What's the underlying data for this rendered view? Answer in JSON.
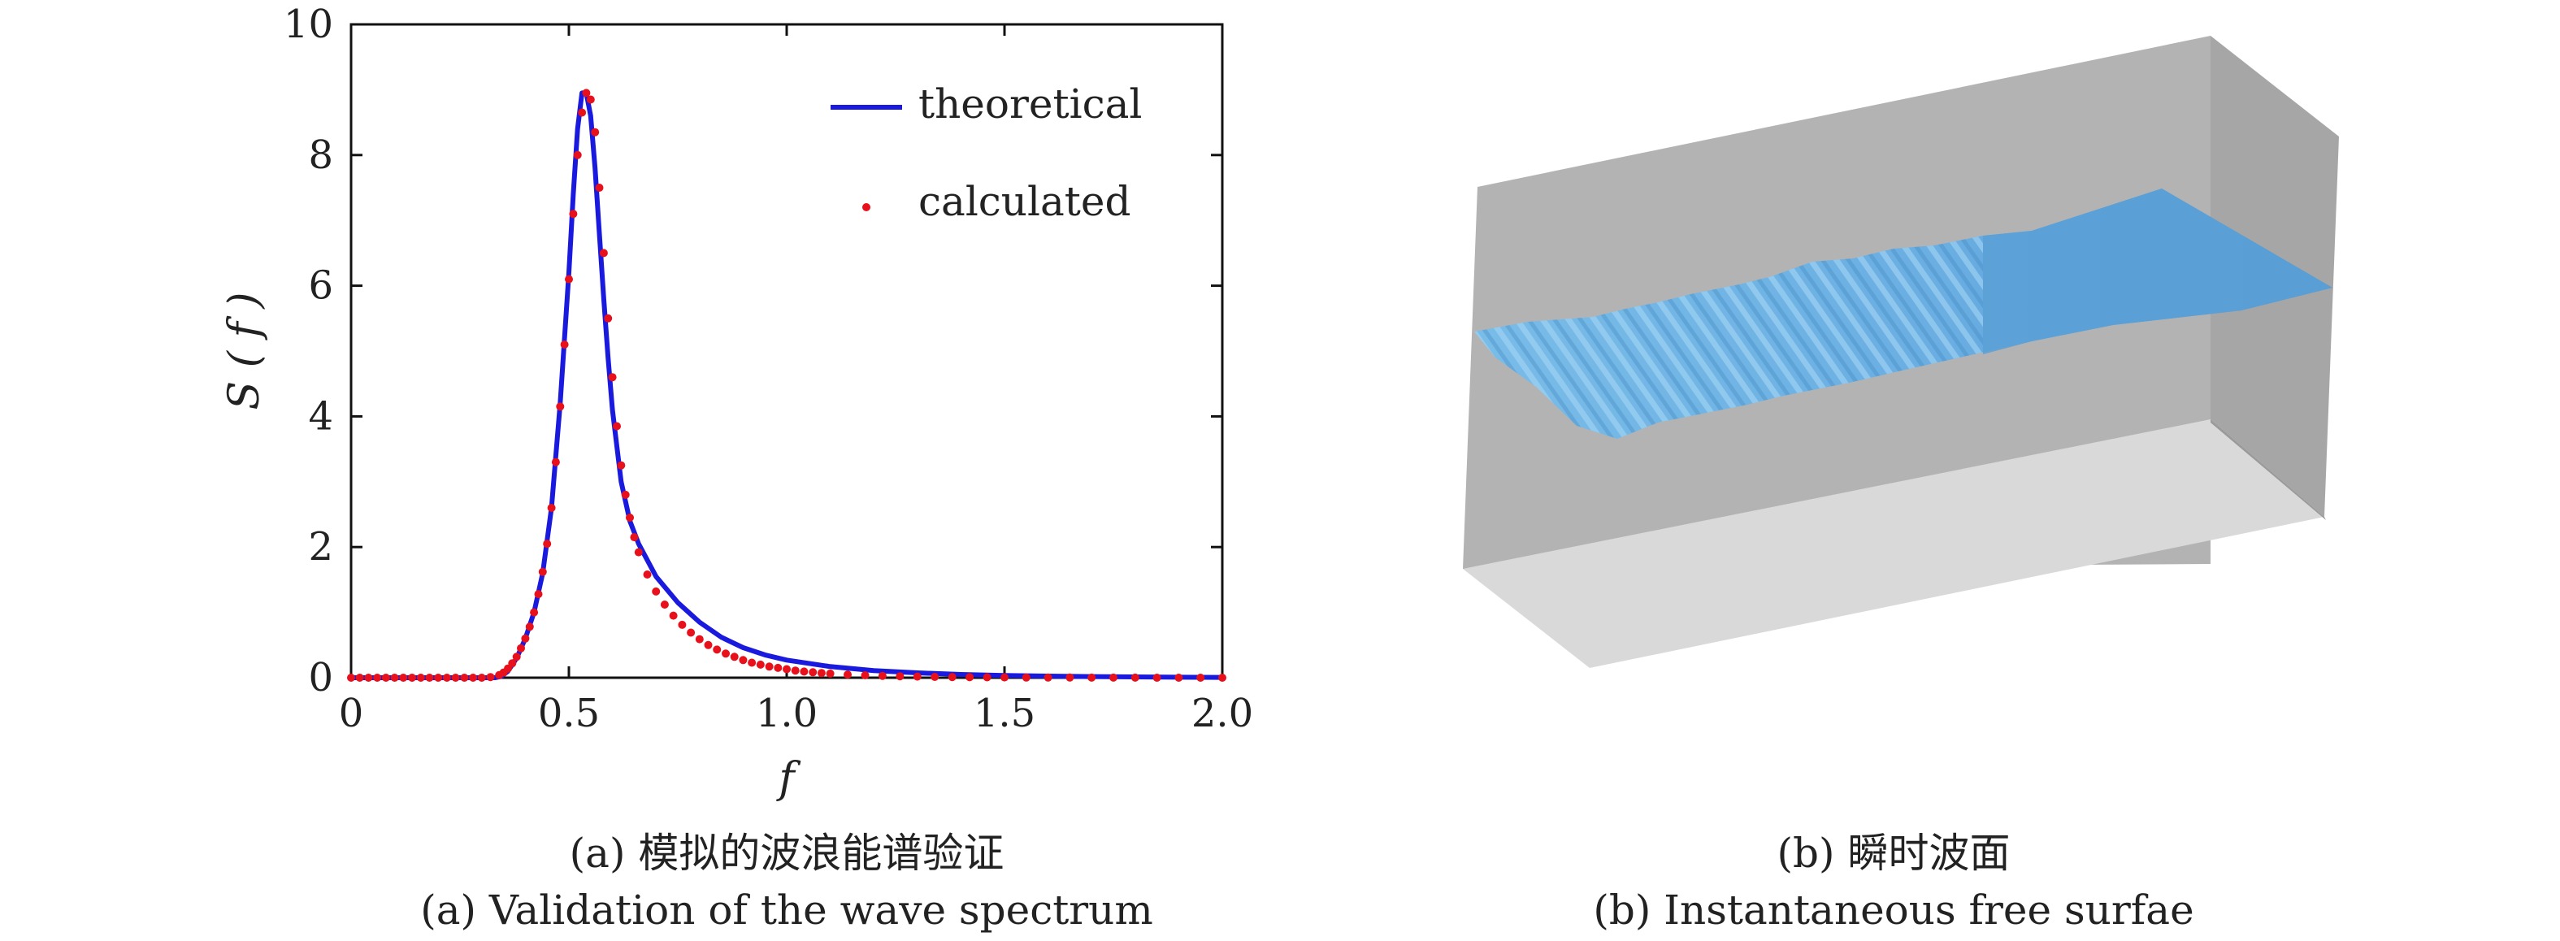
{
  "chart_data": {
    "type": "line",
    "xlabel": "f",
    "ylabel": "S ( f )",
    "xlim": [
      0,
      2.0
    ],
    "ylim": [
      0,
      10
    ],
    "xticks": [
      0,
      0.5,
      1.0,
      1.5,
      2.0
    ],
    "xtick_labels": [
      "0",
      "0.5",
      "1.0",
      "1.5",
      "2.0"
    ],
    "yticks": [
      0,
      2,
      4,
      6,
      8,
      10
    ],
    "ytick_labels": [
      "0",
      "2",
      "4",
      "6",
      "8",
      "10"
    ],
    "legend_position": "top-right",
    "series": [
      {
        "name": "theoretical",
        "style": "line",
        "color": "#1a1adf",
        "x": [
          0,
          0.33,
          0.345,
          0.36,
          0.38,
          0.4,
          0.42,
          0.44,
          0.46,
          0.48,
          0.5,
          0.51,
          0.52,
          0.53,
          0.54,
          0.55,
          0.56,
          0.57,
          0.58,
          0.59,
          0.6,
          0.62,
          0.64,
          0.66,
          0.68,
          0.7,
          0.75,
          0.8,
          0.85,
          0.9,
          0.95,
          1.0,
          1.1,
          1.2,
          1.3,
          1.4,
          1.5,
          1.6,
          1.7,
          1.8,
          1.9,
          2.0
        ],
        "y": [
          0,
          0,
          0.02,
          0.1,
          0.3,
          0.6,
          1.0,
          1.6,
          2.6,
          4.2,
          6.2,
          7.4,
          8.4,
          8.95,
          8.95,
          8.6,
          7.8,
          6.8,
          5.8,
          4.9,
          4.1,
          3.0,
          2.4,
          2.05,
          1.8,
          1.55,
          1.15,
          0.85,
          0.62,
          0.46,
          0.35,
          0.27,
          0.17,
          0.11,
          0.075,
          0.05,
          0.035,
          0.025,
          0.018,
          0.012,
          0.008,
          0.005
        ]
      },
      {
        "name": "calculated",
        "style": "dots",
        "color": "#e8101a",
        "x": [
          0,
          0.02,
          0.04,
          0.06,
          0.08,
          0.1,
          0.12,
          0.14,
          0.16,
          0.18,
          0.2,
          0.22,
          0.24,
          0.26,
          0.28,
          0.3,
          0.32,
          0.34,
          0.35,
          0.36,
          0.37,
          0.38,
          0.39,
          0.4,
          0.41,
          0.42,
          0.43,
          0.44,
          0.45,
          0.46,
          0.47,
          0.48,
          0.49,
          0.5,
          0.51,
          0.52,
          0.53,
          0.54,
          0.55,
          0.56,
          0.57,
          0.58,
          0.59,
          0.6,
          0.61,
          0.62,
          0.63,
          0.64,
          0.65,
          0.66,
          0.68,
          0.7,
          0.72,
          0.74,
          0.76,
          0.78,
          0.8,
          0.82,
          0.84,
          0.86,
          0.88,
          0.9,
          0.92,
          0.94,
          0.96,
          0.98,
          1.0,
          1.02,
          1.04,
          1.06,
          1.08,
          1.1,
          1.14,
          1.18,
          1.22,
          1.26,
          1.3,
          1.34,
          1.38,
          1.42,
          1.46,
          1.5,
          1.55,
          1.6,
          1.65,
          1.7,
          1.75,
          1.8,
          1.85,
          1.9,
          1.95,
          2.0
        ],
        "y": [
          0,
          0,
          0,
          0,
          0,
          0,
          0,
          0,
          0,
          0,
          0,
          0,
          0,
          0,
          0,
          0,
          0.01,
          0.04,
          0.08,
          0.14,
          0.22,
          0.32,
          0.45,
          0.6,
          0.78,
          1.0,
          1.28,
          1.62,
          2.05,
          2.6,
          3.3,
          4.15,
          5.1,
          6.1,
          7.1,
          8.0,
          8.65,
          8.95,
          8.85,
          8.35,
          7.5,
          6.5,
          5.5,
          4.6,
          3.85,
          3.25,
          2.8,
          2.45,
          2.15,
          1.92,
          1.58,
          1.32,
          1.12,
          0.95,
          0.81,
          0.69,
          0.59,
          0.5,
          0.43,
          0.37,
          0.32,
          0.27,
          0.23,
          0.2,
          0.17,
          0.15,
          0.13,
          0.11,
          0.095,
          0.083,
          0.072,
          0.063,
          0.048,
          0.037,
          0.029,
          0.022,
          0.017,
          0.013,
          0.01,
          0.008,
          0.006,
          0.005,
          0.003,
          0.002,
          0.002,
          0.001,
          0.001,
          0.001,
          0,
          0,
          0,
          0
        ]
      }
    ]
  },
  "captions": {
    "a_cn": "(a) 模拟的波浪能谱验证",
    "a_en": "(a) Validation of the wave spectrum",
    "b_cn": "(b) 瞬时波面",
    "b_en": "(b) Instantaneous free surfae"
  },
  "surface_image": {
    "box_color": "#b3b3b3",
    "box_side_color": "#a6a6a6",
    "box_bottom_color": "#d9d9d9",
    "water_color": "#5ba3d8",
    "water_light_color": "#8cc6ef"
  }
}
